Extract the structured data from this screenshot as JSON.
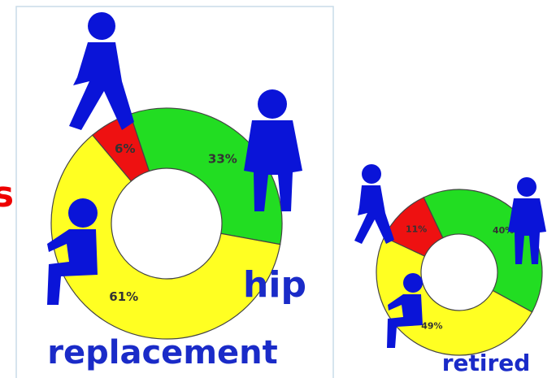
{
  "side_text": "s",
  "chart_data": [
    {
      "type": "donut",
      "title_lines": [
        "hip",
        "replacement"
      ],
      "series": [
        {
          "values": [
            6,
            33,
            61
          ],
          "value_labels": [
            "6%",
            "33%",
            "61%"
          ],
          "colors": [
            "#ee1111",
            "#22dd22",
            "#ffff22"
          ]
        }
      ]
    },
    {
      "type": "donut",
      "title_lines": [
        "retired"
      ],
      "series": [
        {
          "values": [
            11,
            40,
            49
          ],
          "value_labels": [
            "11%",
            "40%",
            "49%"
          ],
          "colors": [
            "#ee1111",
            "#22dd22",
            "#ffff22"
          ]
        }
      ]
    }
  ]
}
